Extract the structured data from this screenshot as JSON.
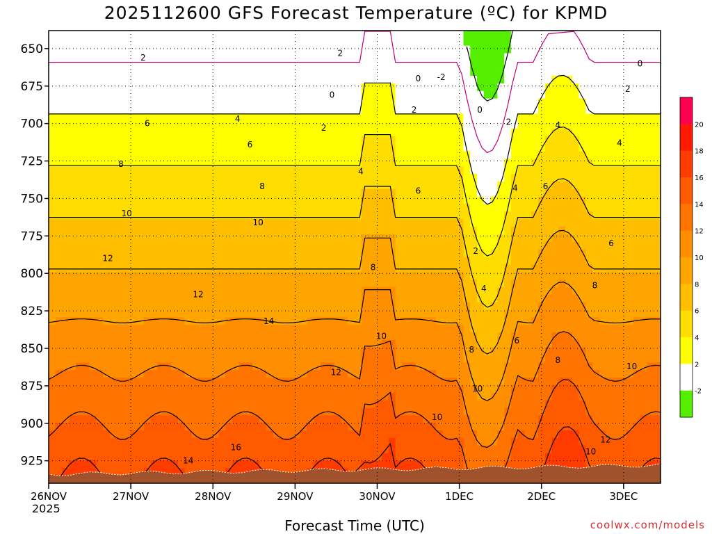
{
  "chart_data": {
    "type": "heatmap",
    "title": "2025112600 GFS Forecast Temperature (ºC) for KPMD",
    "xlabel": "Forecast Time (UTC)",
    "ylabel": "",
    "year_label": "2025",
    "credit": "coolwx.com/models",
    "y_ticks": [
      650,
      675,
      700,
      725,
      750,
      775,
      800,
      825,
      850,
      875,
      900,
      925
    ],
    "y_range_hpa": [
      638,
      940
    ],
    "x_ticks": [
      "26NOV",
      "27NOV",
      "28NOV",
      "29NOV",
      "30NOV",
      "1DEC",
      "2DEC",
      "3DEC"
    ],
    "x_range_days": [
      0,
      7.45
    ],
    "colorbar_ticks": [
      "20",
      "18",
      "16",
      "14",
      "12",
      "10",
      "8",
      "6",
      "4",
      "2",
      "-2"
    ],
    "colorbar_colors": [
      "#ff0050",
      "#ff1a00",
      "#ff3b00",
      "#ff5a00",
      "#ff7400",
      "#ff8e00",
      "#ffa500",
      "#ffbf00",
      "#ffdd00",
      "#ffff00",
      "#ffffff",
      "#55ee00"
    ],
    "surface_color": "#a0522d",
    "zero_line_color": "#c0007a",
    "contour_levels": [
      -2,
      0,
      2,
      4,
      6,
      8,
      10,
      12,
      14,
      16
    ],
    "contour_labels": [
      {
        "t": 1.15,
        "p": 656,
        "v": "2"
      },
      {
        "t": 3.55,
        "p": 653,
        "v": "2"
      },
      {
        "t": 4.5,
        "p": 670,
        "v": "0"
      },
      {
        "t": 4.78,
        "p": 669,
        "v": "-2"
      },
      {
        "t": 3.45,
        "p": 681,
        "v": "0"
      },
      {
        "t": 5.25,
        "p": 691,
        "v": "0"
      },
      {
        "t": 4.45,
        "p": 691,
        "v": "2"
      },
      {
        "t": 3.35,
        "p": 703,
        "v": "2"
      },
      {
        "t": 5.6,
        "p": 699,
        "v": "2"
      },
      {
        "t": 1.2,
        "p": 700,
        "v": "6"
      },
      {
        "t": 2.3,
        "p": 697,
        "v": "4"
      },
      {
        "t": 2.45,
        "p": 714,
        "v": "6"
      },
      {
        "t": 0.88,
        "p": 727,
        "v": "8"
      },
      {
        "t": 3.8,
        "p": 732,
        "v": "4"
      },
      {
        "t": 2.6,
        "p": 742,
        "v": "8"
      },
      {
        "t": 4.5,
        "p": 745,
        "v": "6"
      },
      {
        "t": 6.2,
        "p": 701,
        "v": "4"
      },
      {
        "t": 6.95,
        "p": 713,
        "v": "4"
      },
      {
        "t": 7.05,
        "p": 677,
        "v": "2"
      },
      {
        "t": 7.2,
        "p": 660,
        "v": "0"
      },
      {
        "t": 5.68,
        "p": 743,
        "v": "4"
      },
      {
        "t": 6.05,
        "p": 742,
        "v": "6"
      },
      {
        "t": 0.95,
        "p": 760,
        "v": "10"
      },
      {
        "t": 2.55,
        "p": 766,
        "v": "10"
      },
      {
        "t": 0.72,
        "p": 790,
        "v": "12"
      },
      {
        "t": 5.2,
        "p": 785,
        "v": "2"
      },
      {
        "t": 3.95,
        "p": 796,
        "v": "8"
      },
      {
        "t": 6.85,
        "p": 780,
        "v": "6"
      },
      {
        "t": 1.82,
        "p": 814,
        "v": "12"
      },
      {
        "t": 5.3,
        "p": 810,
        "v": "4"
      },
      {
        "t": 6.65,
        "p": 808,
        "v": "8"
      },
      {
        "t": 2.68,
        "p": 832,
        "v": "14"
      },
      {
        "t": 4.05,
        "p": 842,
        "v": "10"
      },
      {
        "t": 5.7,
        "p": 845,
        "v": "6"
      },
      {
        "t": 5.15,
        "p": 851,
        "v": "8"
      },
      {
        "t": 6.2,
        "p": 858,
        "v": "8"
      },
      {
        "t": 3.5,
        "p": 866,
        "v": "12"
      },
      {
        "t": 5.22,
        "p": 877,
        "v": "10"
      },
      {
        "t": 7.1,
        "p": 862,
        "v": "10"
      },
      {
        "t": 4.73,
        "p": 896,
        "v": "10"
      },
      {
        "t": 6.78,
        "p": 911,
        "v": "12"
      },
      {
        "t": 2.28,
        "p": 916,
        "v": "16"
      },
      {
        "t": 6.6,
        "p": 919,
        "v": "10"
      },
      {
        "t": 1.7,
        "p": 925,
        "v": "14"
      }
    ],
    "grid": true,
    "legend_placement": "right colorbar"
  }
}
